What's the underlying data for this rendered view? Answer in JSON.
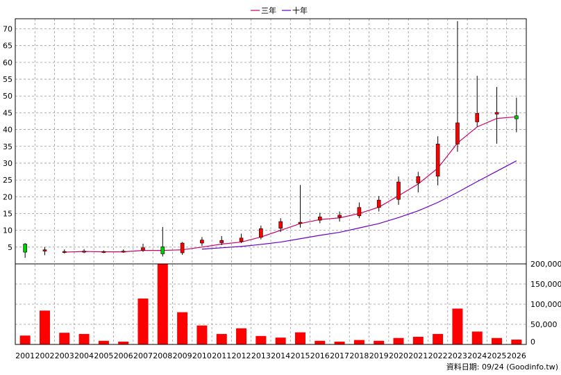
{
  "chart_data": {
    "type": "candlestick+line+bar",
    "legend": [
      {
        "label": "三年",
        "color": "#cc0066"
      },
      {
        "label": "十年",
        "color": "#6600cc"
      }
    ],
    "x": [
      "2001",
      "2002",
      "2003",
      "2004",
      "2005",
      "2006",
      "2007",
      "2008",
      "2009",
      "2010",
      "2011",
      "2012",
      "2013",
      "2014",
      "2015",
      "2016",
      "2017",
      "2018",
      "2019",
      "2020",
      "2021",
      "2022",
      "2023",
      "2024",
      "2025",
      "2026"
    ],
    "price_axis": {
      "ylim": [
        0,
        73
      ],
      "ticks": [
        5,
        10,
        15,
        20,
        25,
        30,
        35,
        40,
        45,
        50,
        55,
        60,
        65,
        70
      ]
    },
    "volume_axis": {
      "ylim": [
        0,
        200000
      ],
      "ticks": [
        "0",
        "50,000",
        "100,000",
        "150,000",
        "200,000"
      ]
    },
    "candles": [
      {
        "open": 3.5,
        "high": 6.2,
        "low": 1.8,
        "close": 5.9
      },
      {
        "open": 4.2,
        "high": 5.0,
        "low": 2.6,
        "close": 3.8
      },
      {
        "open": 3.7,
        "high": 4.3,
        "low": 3.1,
        "close": 3.4
      },
      {
        "open": 3.8,
        "high": 4.4,
        "low": 3.2,
        "close": 3.6
      },
      {
        "open": 3.7,
        "high": 4.0,
        "low": 3.2,
        "close": 3.4
      },
      {
        "open": 3.8,
        "high": 4.3,
        "low": 3.3,
        "close": 3.5
      },
      {
        "open": 4.8,
        "high": 6.0,
        "low": 3.6,
        "close": 4.0
      },
      {
        "open": 3.0,
        "high": 11.0,
        "low": 2.2,
        "close": 5.1
      },
      {
        "open": 6.2,
        "high": 6.5,
        "low": 2.7,
        "close": 3.3
      },
      {
        "open": 7.1,
        "high": 8.0,
        "low": 5.3,
        "close": 6.2
      },
      {
        "open": 7.0,
        "high": 8.3,
        "low": 5.6,
        "close": 6.3
      },
      {
        "open": 7.7,
        "high": 9.0,
        "low": 6.2,
        "close": 6.7
      },
      {
        "open": 10.5,
        "high": 11.4,
        "low": 7.3,
        "close": 7.9
      },
      {
        "open": 12.6,
        "high": 13.6,
        "low": 9.5,
        "close": 10.6
      },
      {
        "open": 12.4,
        "high": 23.5,
        "low": 10.8,
        "close": 12.0
      },
      {
        "open": 14.0,
        "high": 15.2,
        "low": 12.1,
        "close": 13.0
      },
      {
        "open": 14.5,
        "high": 15.6,
        "low": 12.6,
        "close": 13.9
      },
      {
        "open": 16.8,
        "high": 18.3,
        "low": 13.6,
        "close": 14.3
      },
      {
        "open": 19.0,
        "high": 20.2,
        "low": 15.6,
        "close": 16.8
      },
      {
        "open": 24.4,
        "high": 26.0,
        "low": 17.6,
        "close": 19.2
      },
      {
        "open": 26.0,
        "high": 27.4,
        "low": 21.3,
        "close": 24.1
      },
      {
        "open": 35.7,
        "high": 38.0,
        "low": 23.4,
        "close": 26.1
      },
      {
        "open": 42.0,
        "high": 72.3,
        "low": 33.4,
        "close": 35.7
      },
      {
        "open": 44.8,
        "high": 56.0,
        "low": 40.9,
        "close": 42.3
      },
      {
        "open": 45.1,
        "high": 52.7,
        "low": 35.8,
        "close": 44.6
      },
      {
        "open": 43.2,
        "high": 49.5,
        "low": 39.2,
        "close": 44.1
      }
    ],
    "ma3": [
      null,
      null,
      3.5,
      3.7,
      3.6,
      3.6,
      4.0,
      4.0,
      4.2,
      5.0,
      5.9,
      6.5,
      8.0,
      10.0,
      12.0,
      13.2,
      13.7,
      15.0,
      16.9,
      20.3,
      23.8,
      28.5,
      36.0,
      40.8,
      43.3,
      43.8
    ],
    "ma10": [
      null,
      null,
      null,
      null,
      null,
      null,
      null,
      null,
      null,
      4.4,
      4.8,
      5.2,
      5.8,
      6.5,
      7.5,
      8.5,
      9.4,
      10.7,
      12.0,
      13.8,
      15.8,
      18.3,
      21.3,
      24.5,
      27.6,
      30.7
    ],
    "volume": [
      22000,
      84000,
      29000,
      26000,
      9000,
      7000,
      114000,
      201000,
      80000,
      47000,
      26000,
      40000,
      21000,
      17000,
      30000,
      9000,
      7000,
      11000,
      9000,
      16000,
      19000,
      26000,
      89000,
      32000,
      16000,
      12000
    ]
  },
  "footer": {
    "source_text": "資料日期: 09/24  (Goodinfo.tw)"
  },
  "colors": {
    "up": "#ff0000",
    "down": "#00cc00",
    "grid": "#999999",
    "volume": "#ff0000"
  }
}
